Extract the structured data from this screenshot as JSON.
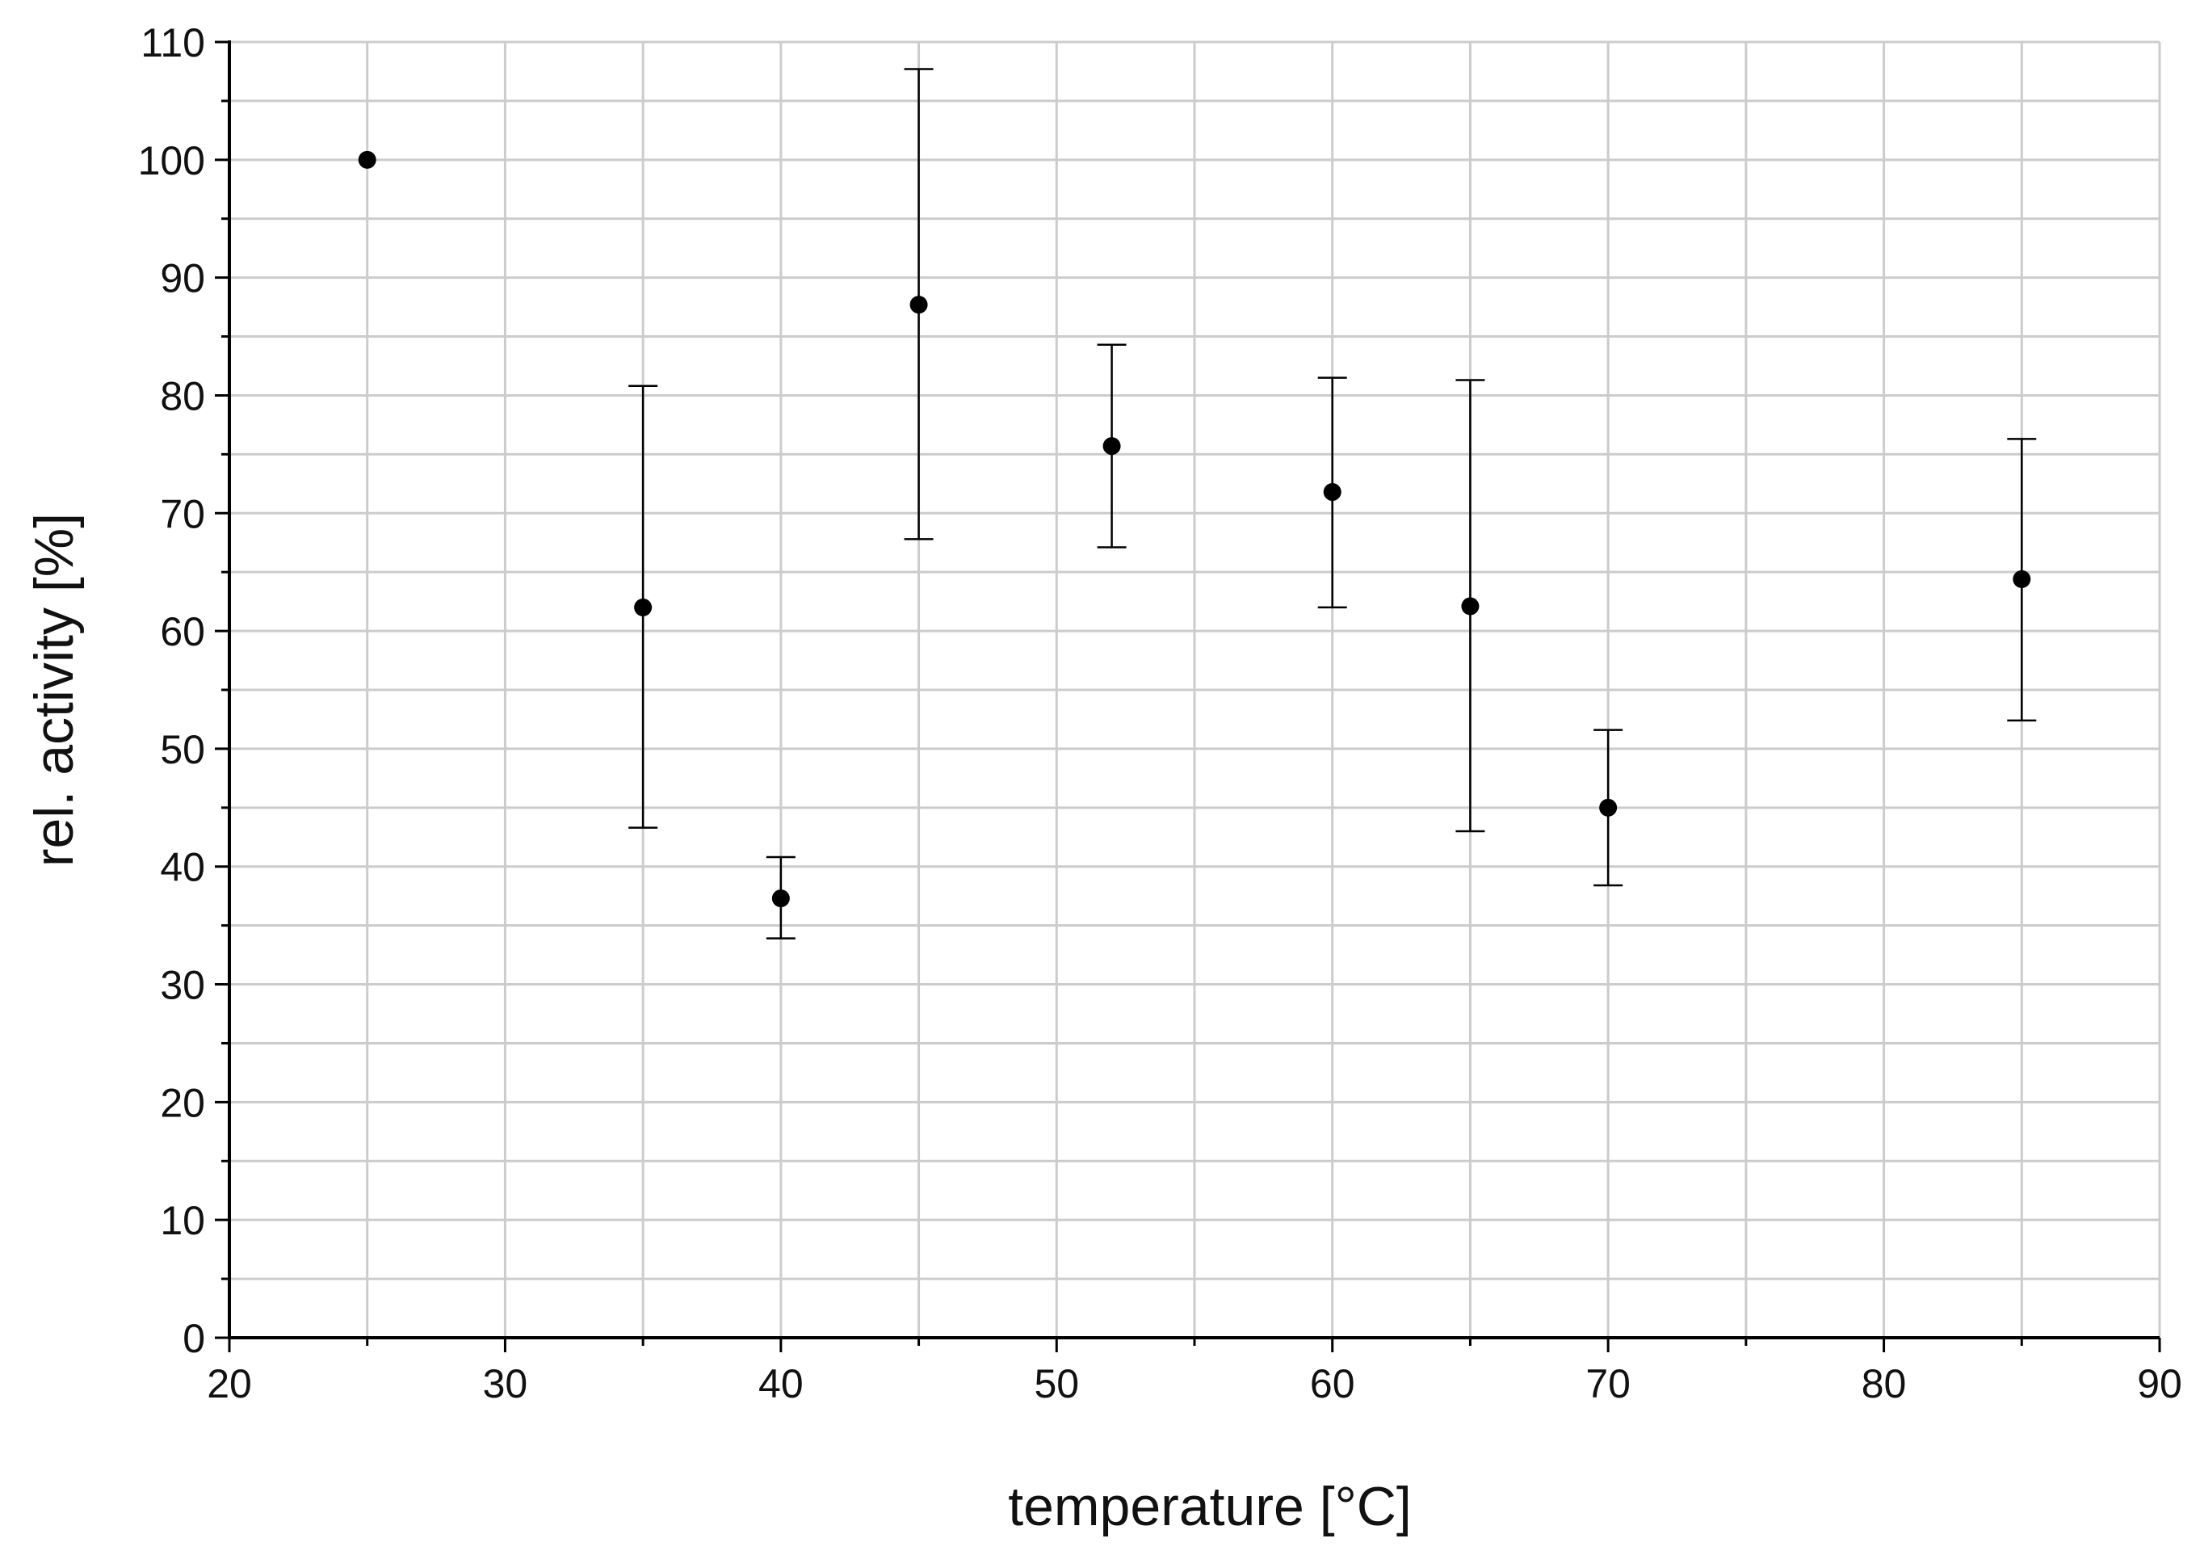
{
  "chart_data": {
    "type": "scatter",
    "title": "",
    "xlabel": "temperature [°C]",
    "ylabel": "rel. activity [%]",
    "xlim": [
      20,
      90
    ],
    "ylim": [
      0,
      110
    ],
    "xticks": [
      20,
      30,
      40,
      50,
      60,
      70,
      80,
      90
    ],
    "yticks": [
      0,
      10,
      20,
      30,
      40,
      50,
      60,
      70,
      80,
      90,
      100,
      110
    ],
    "x_tick_labels": [
      "20",
      "30",
      "40",
      "50",
      "60",
      "70",
      "80",
      "90"
    ],
    "y_tick_labels": [
      "0",
      "10",
      "20",
      "30",
      "40",
      "50",
      "60",
      "70",
      "80",
      "90",
      "100",
      "110"
    ],
    "grid": true,
    "marker_color": "#000000",
    "grid_color": "#cccccc",
    "points": [
      {
        "x": 25,
        "y": 100.0,
        "err_low": 100.0,
        "err_high": 100.0
      },
      {
        "x": 35,
        "y": 62.0,
        "err_low": 43.3,
        "err_high": 80.8
      },
      {
        "x": 40,
        "y": 37.3,
        "err_low": 33.9,
        "err_high": 40.8
      },
      {
        "x": 45,
        "y": 87.7,
        "err_low": 67.8,
        "err_high": 107.7
      },
      {
        "x": 52,
        "y": 75.7,
        "err_low": 67.1,
        "err_high": 84.3
      },
      {
        "x": 60,
        "y": 71.8,
        "err_low": 62.0,
        "err_high": 81.5
      },
      {
        "x": 65,
        "y": 62.1,
        "err_low": 43.0,
        "err_high": 81.3
      },
      {
        "x": 70,
        "y": 45.0,
        "err_low": 38.4,
        "err_high": 51.6
      },
      {
        "x": 85,
        "y": 64.4,
        "err_low": 52.4,
        "err_high": 76.3
      }
    ]
  }
}
